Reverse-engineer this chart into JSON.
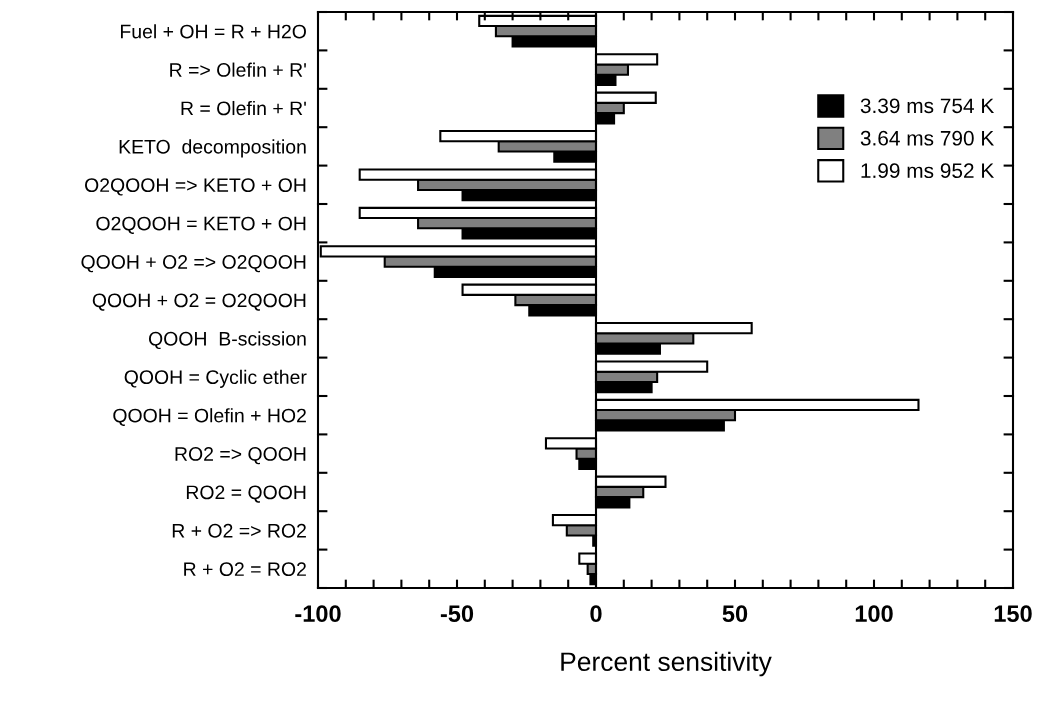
{
  "chart_data": {
    "type": "bar",
    "orientation": "horizontal",
    "xlabel": "Percent sensitivity",
    "categories": [
      "Fuel + OH = R + H2O",
      "R => Olefin + R'",
      "R = Olefin + R'",
      "KETO  decomposition",
      "O2QOOH => KETO + OH",
      "O2QOOH = KETO + OH",
      "QOOH + O2 => O2QOOH",
      "QOOH + O2 = O2QOOH",
      "QOOH  B-scission",
      "QOOH = Cyclic ether",
      "QOOH = Olefin + HO2",
      "RO2 => QOOH",
      "RO2 = QOOH",
      "R + O2 => RO2",
      "R + O2 = RO2"
    ],
    "series": [
      {
        "name": "3.39 ms 754 K",
        "color": "#000000",
        "values": [
          -30,
          7,
          6.5,
          -15,
          -48,
          -48,
          -58,
          -24,
          23,
          20,
          46,
          -6,
          12,
          -1,
          -2
        ]
      },
      {
        "name": "3.64 ms 790 K",
        "color": "#808080",
        "values": [
          -36,
          11.5,
          10,
          -35,
          -64,
          -64,
          -76,
          -29,
          35,
          22,
          50,
          -7,
          17,
          -10.5,
          -3
        ]
      },
      {
        "name": "1.99 ms 952 K",
        "color": "#ffffff",
        "values": [
          -42,
          22,
          21.5,
          -56,
          -85,
          -85,
          -99,
          -48,
          56,
          40,
          116,
          -18,
          25,
          -15.5,
          -6
        ]
      }
    ],
    "xlim": [
      -100,
      150
    ],
    "xticks": [
      -100,
      {
        "value": -90,
        "label": null
      },
      {
        "value": -80,
        "label": null
      },
      {
        "value": -70,
        "label": null
      },
      {
        "value": -60,
        "label": null
      },
      -50,
      {
        "value": -40,
        "label": null
      },
      {
        "value": -30,
        "label": null
      },
      {
        "value": -20,
        "label": null
      },
      {
        "value": -10,
        "label": null
      },
      0,
      {
        "value": 10,
        "label": null
      },
      {
        "value": 20,
        "label": null
      },
      {
        "value": 30,
        "label": null
      },
      {
        "value": 40,
        "label": null
      },
      50,
      {
        "value": 60,
        "label": null
      },
      {
        "value": 70,
        "label": null
      },
      {
        "value": 80,
        "label": null
      },
      {
        "value": 90,
        "label": null
      },
      100,
      {
        "value": 110,
        "label": null
      },
      {
        "value": 120,
        "label": null
      },
      {
        "value": 130,
        "label": null
      },
      {
        "value": 140,
        "label": null
      },
      150
    ],
    "ref_lines": [
      {
        "axis": "x",
        "value": 0,
        "color": "#000000"
      }
    ],
    "legend": "right",
    "grid": false
  }
}
